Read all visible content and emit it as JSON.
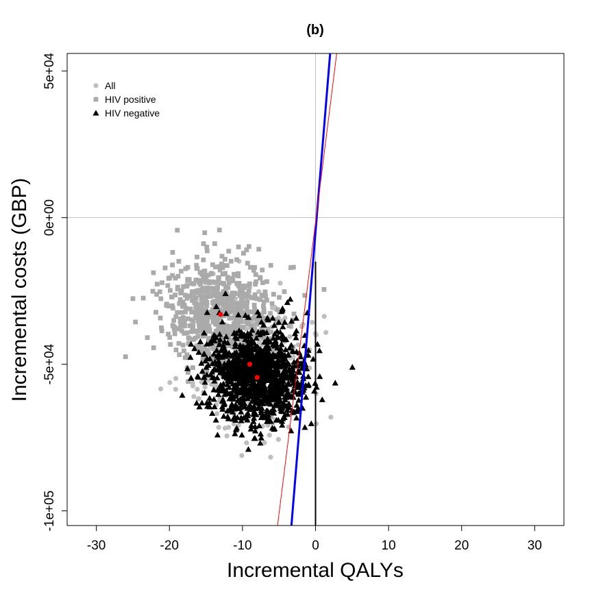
{
  "chart_data": {
    "type": "scatter",
    "title": "(b)",
    "xlabel": "Incremental QALYs",
    "ylabel": "Incremental costs (GBP)",
    "xlim": [
      -34,
      34
    ],
    "ylim": [
      -105000,
      56000
    ],
    "x_ticks": [
      {
        "value": -30,
        "label": "-30"
      },
      {
        "value": -20,
        "label": "-20"
      },
      {
        "value": -10,
        "label": "-10"
      },
      {
        "value": 0,
        "label": "0"
      },
      {
        "value": 10,
        "label": "10"
      },
      {
        "value": 20,
        "label": "20"
      },
      {
        "value": 30,
        "label": "30"
      }
    ],
    "y_ticks": [
      {
        "value": 50000,
        "label": "5e+04"
      },
      {
        "value": 0,
        "label": "0e+00"
      },
      {
        "value": -50000,
        "label": "-5e+04"
      },
      {
        "value": -100000,
        "label": "-1e+05"
      }
    ],
    "reference_lines": [
      {
        "orientation": "vertical",
        "x": 0,
        "color": "#bebebe"
      },
      {
        "orientation": "horizontal",
        "y": 0,
        "color": "#bebebe"
      }
    ],
    "legend": {
      "position": "top-left",
      "entries": [
        {
          "label": "All",
          "marker": "circle",
          "color": "#bebebe"
        },
        {
          "label": "HIV positive",
          "marker": "square",
          "color": "#aaaaaa"
        },
        {
          "label": "HIV negative",
          "marker": "triangle",
          "color": "#000000"
        }
      ]
    },
    "series": [
      {
        "name": "All",
        "marker": "circle",
        "color": "#bebebe",
        "center": [
          -9,
          -50000
        ],
        "spread": [
          6.5,
          18000
        ],
        "n": 300
      },
      {
        "name": "HIV positive",
        "marker": "square",
        "color": "#aaaaaa",
        "center": [
          -13,
          -33000
        ],
        "spread": [
          6.5,
          16000
        ],
        "n": 700
      },
      {
        "name": "HIV negative",
        "marker": "triangle",
        "color": "#000000",
        "center": [
          -8,
          -54000
        ],
        "spread": [
          5.5,
          13000
        ],
        "n": 1100
      }
    ],
    "mean_points": [
      {
        "x": -13,
        "y": -33000,
        "color": "#ff0000"
      },
      {
        "x": -9,
        "y": -50000,
        "color": "#ff0000"
      },
      {
        "x": -8,
        "y": -54500,
        "color": "#ff0000"
      }
    ],
    "ceac_lines": [
      {
        "color": "#0000ff",
        "width": 3,
        "points": [
          [
            -3.3,
            -105000
          ],
          [
            2,
            56000
          ]
        ]
      },
      {
        "color": "#ff0000",
        "width": 1,
        "points": [
          [
            -5.2,
            -105000
          ],
          [
            2.9,
            56000
          ]
        ]
      },
      {
        "color": "#000000",
        "width": 2,
        "points": [
          [
            0,
            -105000
          ],
          [
            0,
            -15000
          ]
        ]
      }
    ]
  }
}
